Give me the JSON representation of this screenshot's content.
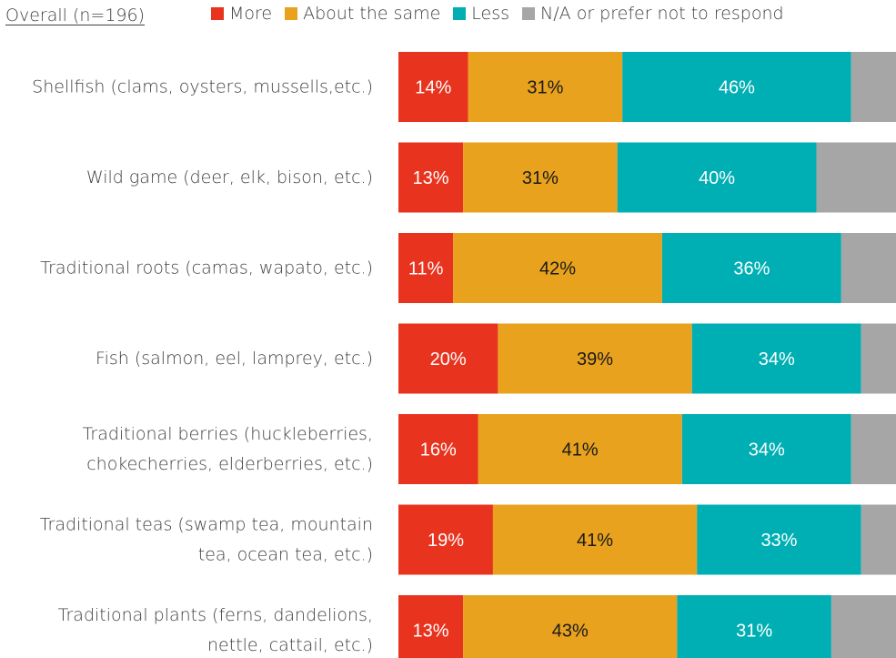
{
  "chart_data": {
    "type": "bar",
    "orientation": "horizontal",
    "stacked": true,
    "subset_label": "Overall (n=196)",
    "categories": [
      "Shellfish (clams, oysters, mussells,etc.)",
      "Wild game (deer, elk, bison, etc.)",
      "Traditional roots (camas, wapato, etc.)",
      "Fish (salmon, eel, lamprey, etc.)",
      "Traditional berries (huckleberries, chokecherries, elderberries,  etc.)",
      "Traditional teas (swamp tea, mountain tea, ocean tea, etc.)",
      "Traditional plants (ferns, dandelions, nettle, cattail, etc.)"
    ],
    "category_lines": [
      [
        "Shellfish (clams, oysters, mussells,etc.)"
      ],
      [
        "Wild game (deer, elk, bison, etc.)"
      ],
      [
        "Traditional roots (camas, wapato, etc.)"
      ],
      [
        "Fish (salmon, eel, lamprey, etc.)"
      ],
      [
        "Traditional berries (huckleberries,",
        "chokecherries, elderberries,  etc.)"
      ],
      [
        "Traditional teas (swamp tea, mountain",
        "tea, ocean tea, etc.)"
      ],
      [
        "Traditional plants (ferns, dandelions,",
        "nettle, cattail, etc.)"
      ]
    ],
    "series": [
      {
        "name": "More",
        "values": [
          14,
          13,
          11,
          20,
          16,
          19,
          13
        ],
        "color": "#E8331E",
        "label_color": "#ffffff"
      },
      {
        "name": "About the same",
        "values": [
          31,
          31,
          42,
          39,
          41,
          41,
          43
        ],
        "color": "#E8A21E",
        "label_color": "#1a1a1a"
      },
      {
        "name": "Less",
        "values": [
          46,
          40,
          36,
          34,
          34,
          33,
          31
        ],
        "color": "#00AFB3",
        "label_color": "#ffffff"
      },
      {
        "name": "N/A or prefer not to respond",
        "values": [
          7,
          11,
          6,
          3,
          6,
          4,
          11
        ],
        "color": "#A6A6A6",
        "label_color": "#ffffff",
        "show_labels": false
      }
    ],
    "value_suffix": "%",
    "xlim": [
      0,
      100
    ],
    "legend_position": "top",
    "grid": false
  }
}
